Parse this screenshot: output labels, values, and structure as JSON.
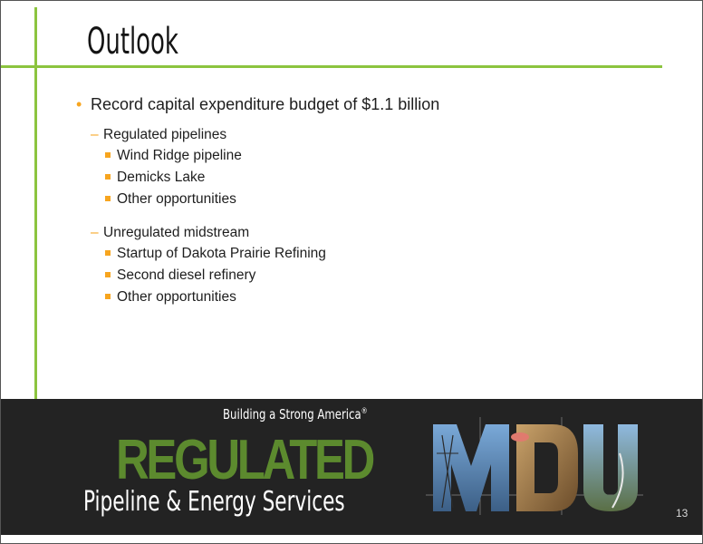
{
  "slide": {
    "title": "Outlook",
    "page_number": "13"
  },
  "bullets": {
    "main": "Record capital expenditure budget of $1.1 billion",
    "groups": [
      {
        "label": "Regulated pipelines",
        "items": [
          "Wind Ridge pipeline",
          "Demicks Lake",
          "Other opportunities"
        ]
      },
      {
        "label": "Unregulated midstream",
        "items": [
          "Startup of Dakota Prairie Refining",
          "Second diesel refinery",
          "Other opportunities"
        ]
      }
    ]
  },
  "footer": {
    "tagline": "Building a Strong America",
    "tagline_mark": "®",
    "segment": "REGULATED",
    "segment_name": "Pipeline & Energy Services",
    "logo_text": "MDU"
  },
  "colors": {
    "accent_green": "#8cc43f",
    "bullet_orange": "#f7a51f",
    "footer_bg": "#232323",
    "regulated_green": "#5c8a2e"
  }
}
